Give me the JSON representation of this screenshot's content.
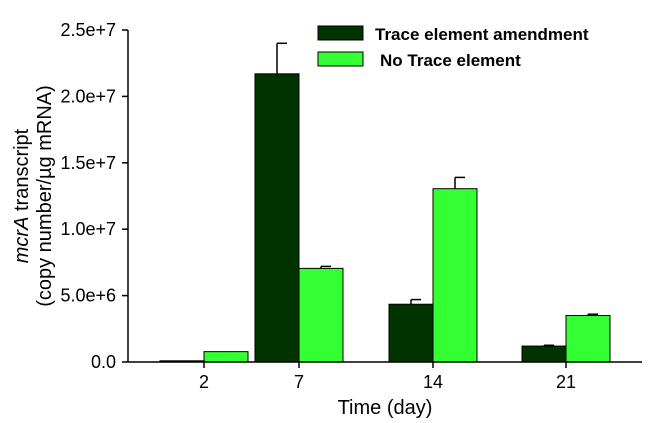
{
  "chart_data": {
    "type": "bar",
    "categories": [
      "2",
      "7",
      "14",
      "21"
    ],
    "series": [
      {
        "name": "Trace element amendment",
        "color": "#003300",
        "values": [
          90000,
          21700000,
          4350000,
          1200000
        ],
        "errors": [
          0,
          2300000,
          350000,
          60000
        ]
      },
      {
        "name": "No Trace element",
        "color": "#33ff33",
        "values": [
          780000,
          7050000,
          13050000,
          3500000
        ],
        "errors": [
          0,
          150000,
          850000,
          100000
        ]
      }
    ],
    "xlabel": "Time (day)",
    "ylabel_line1_italic": "mcrA",
    "ylabel_line1_rest": " transcript",
    "ylabel_line2": "(copy number/µg  mRNA)",
    "ylim": [
      0,
      25000000
    ],
    "yticks": [
      0,
      5000000,
      10000000,
      15000000,
      20000000,
      25000000
    ],
    "ytick_labels": [
      "0.0",
      "5.0e+6",
      "1.0e+7",
      "1.5e+7",
      "2.0e+7",
      "2.5e+7"
    ],
    "legend_position": "top-right",
    "grid": false
  }
}
